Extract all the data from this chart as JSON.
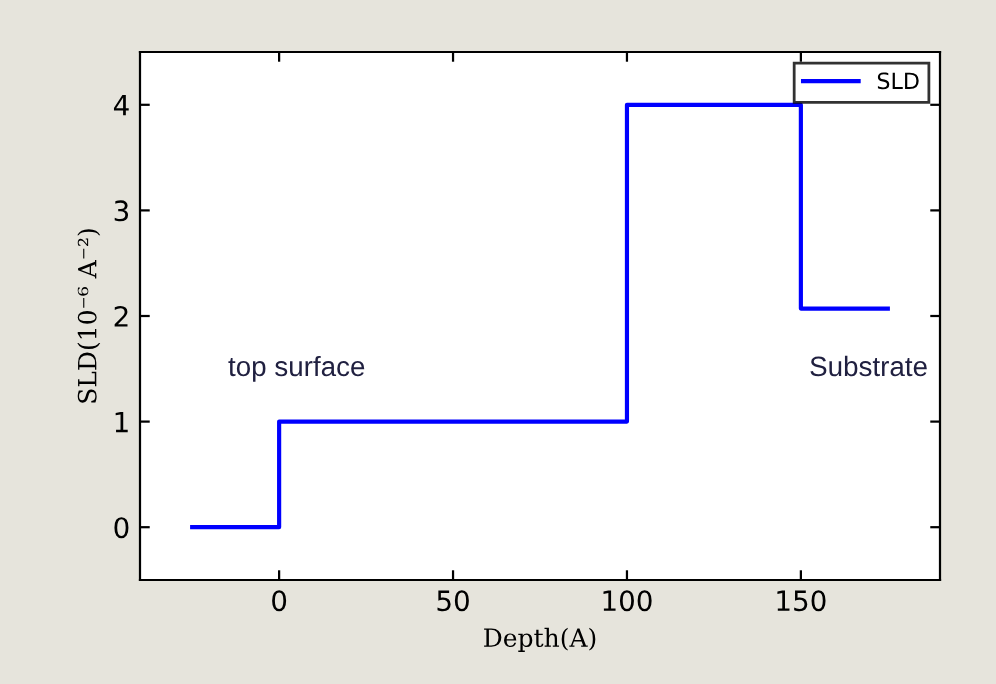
{
  "chart_data": {
    "type": "step",
    "xlabel": "Depth(A)",
    "ylabel": "SLD(10⁻⁶ A⁻²)",
    "x": [
      -25,
      0,
      100,
      150,
      175
    ],
    "series": [
      {
        "name": "SLD",
        "color": "#0000ff",
        "values": [
          0,
          1,
          4,
          2.07,
          2.07
        ]
      }
    ],
    "xlim": [
      -40,
      190
    ],
    "xticks": [
      0,
      50,
      100,
      150
    ],
    "ylim": [
      -0.5,
      4.5
    ],
    "yticks": [
      0,
      1,
      2,
      3,
      4
    ],
    "annotations": [
      "top surface",
      "Substrate"
    ],
    "legend": "top right",
    "grid": false
  }
}
